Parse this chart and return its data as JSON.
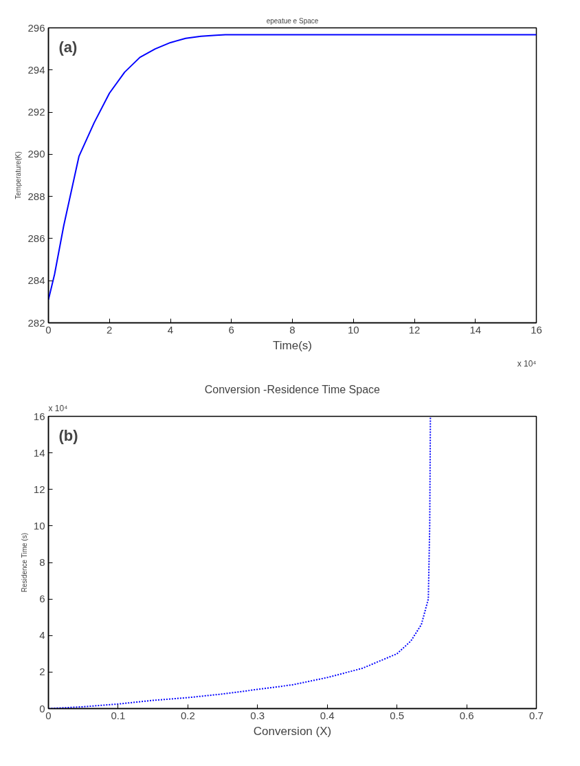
{
  "chart_data": [
    {
      "type": "line",
      "title": "epeatue e Space",
      "xlabel": "Time(s)",
      "ylabel": "Temperature(K)",
      "annotations": [
        "(a)",
        "x 10⁴"
      ],
      "x": [
        0,
        0.2,
        0.5,
        1,
        1.5,
        2,
        2.5,
        3,
        3.5,
        4,
        4.5,
        5,
        5.5,
        5.8,
        8,
        16
      ],
      "series": [
        {
          "color": "#0000ff",
          "values": [
            283.1,
            284.3,
            286.6,
            289.9,
            291.5,
            292.9,
            293.9,
            294.6,
            295.0,
            295.3,
            295.5,
            295.6,
            295.65,
            295.67,
            295.67,
            295.67
          ]
        }
      ],
      "xlim": [
        0,
        16
      ],
      "ylim": [
        282,
        296
      ],
      "xticks": [
        0,
        2,
        4,
        6,
        8,
        10,
        12,
        14,
        16
      ],
      "yticks": [
        282,
        284,
        286,
        288,
        290,
        292,
        294,
        296
      ],
      "grid": false,
      "line_style": "solid"
    },
    {
      "type": "line",
      "title": "Conversion -Residence Time Space",
      "xlabel": "Conversion (X)",
      "ylabel": "Residence Time (s)",
      "annotations": [
        "(b)",
        "x 10⁴"
      ],
      "x": [
        0,
        0.05,
        0.1,
        0.15,
        0.2,
        0.25,
        0.3,
        0.35,
        0.4,
        0.45,
        0.5,
        0.52,
        0.535,
        0.545,
        0.547,
        0.548
      ],
      "series": [
        {
          "color": "#0000ff",
          "values": [
            0,
            0.1,
            0.25,
            0.45,
            0.6,
            0.8,
            1.05,
            1.3,
            1.7,
            2.2,
            3.0,
            3.7,
            4.6,
            6,
            10,
            16
          ]
        }
      ],
      "xlim": [
        0,
        0.7
      ],
      "ylim": [
        0,
        16
      ],
      "xticks": [
        0,
        0.1,
        0.2,
        0.3,
        0.4,
        0.5,
        0.6,
        0.7
      ],
      "yticks": [
        0,
        2,
        4,
        6,
        8,
        10,
        12,
        14,
        16
      ],
      "grid": false,
      "line_style": "dashed"
    }
  ]
}
